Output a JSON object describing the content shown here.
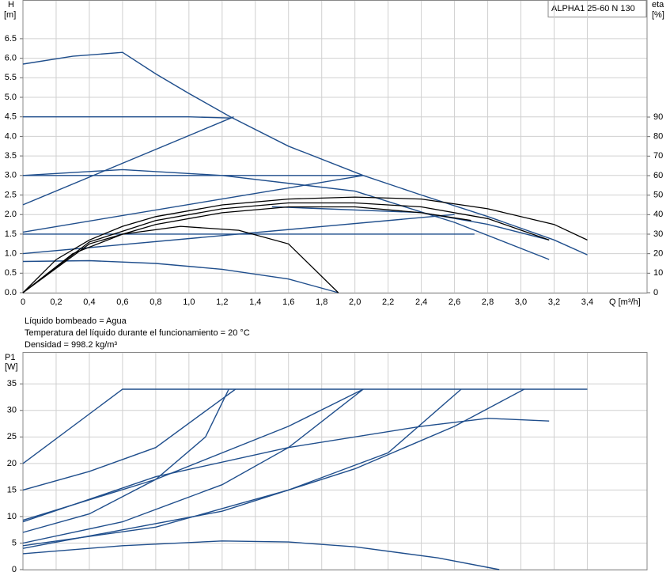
{
  "chart_data": [
    {
      "type": "line",
      "label": "ALPHA1 25-60 N 130",
      "ylabel": "H",
      "yunit": "[m]",
      "y2label": "eta",
      "y2unit": "[%]",
      "xlabel": "Q [m³/h]",
      "xlim": [
        0,
        3.76
      ],
      "ylim": [
        0,
        7.49
      ],
      "y2lim": [
        0,
        150
      ],
      "grid": true,
      "xticks": [
        0,
        {
          "value": 0.2,
          "label": "0,2"
        },
        {
          "value": 0.4,
          "label": "0,4"
        },
        {
          "value": 0.6,
          "label": "0,6"
        },
        {
          "value": 0.8,
          "label": "0,8"
        },
        {
          "value": 1,
          "label": "1,0"
        },
        {
          "value": 1.2,
          "label": "1,2"
        },
        {
          "value": 1.4,
          "label": "1,4"
        },
        {
          "value": 1.6,
          "label": "1,6"
        },
        {
          "value": 1.8,
          "label": "1,8"
        },
        {
          "value": 2,
          "label": "2,0"
        },
        {
          "value": 2.2,
          "label": "2,2"
        },
        {
          "value": 2.4,
          "label": "2,4"
        },
        {
          "value": 2.6,
          "label": "2,6"
        },
        {
          "value": 2.8,
          "label": "2,8"
        },
        {
          "value": 3,
          "label": "3,0"
        },
        {
          "value": 3.2,
          "label": "3,2"
        },
        {
          "value": 3.4,
          "label": "3,4"
        }
      ],
      "yticks": [
        {
          "value": 0,
          "label": "0.0"
        },
        0.5,
        {
          "value": 1,
          "label": "1.0"
        },
        1.5,
        {
          "value": 2,
          "label": "2.0"
        },
        2.5,
        {
          "value": 3,
          "label": "3.0"
        },
        3.5,
        {
          "value": 4,
          "label": "4.0"
        },
        4.5,
        {
          "value": 5,
          "label": "5.0"
        },
        5.5,
        {
          "value": 6,
          "label": "6.0"
        },
        6.5
      ],
      "y2ticks": [
        0,
        10,
        20,
        30,
        40,
        50,
        60,
        70,
        80,
        90
      ],
      "series": [
        {
          "color": "#1f4e8c",
          "x": [
            0,
            0.3,
            0.6,
            0.8,
            1.0,
            1.25,
            1.6,
            2.05,
            2.4,
            2.8,
            3.2,
            3.4
          ],
          "values": [
            5.85,
            6.05,
            6.15,
            5.6,
            5.1,
            4.5,
            3.75,
            3.0,
            2.5,
            1.95,
            1.35,
            0.97
          ]
        },
        {
          "color": "#1f4e8c",
          "x": [
            0,
            1.0,
            1.25
          ],
          "values": [
            4.5,
            4.5,
            4.47
          ]
        },
        {
          "color": "#1f4e8c",
          "x": [
            0,
            1.27
          ],
          "values": [
            2.25,
            4.5
          ]
        },
        {
          "color": "#1f4e8c",
          "x": [
            0,
            2.05
          ],
          "values": [
            3.0,
            3.0
          ]
        },
        {
          "color": "#1f4e8c",
          "x": [
            0,
            2.05
          ],
          "values": [
            1.55,
            3.0
          ]
        },
        {
          "color": "#1f4e8c",
          "x": [
            0,
            2.72
          ],
          "values": [
            1.5,
            1.5
          ]
        },
        {
          "color": "#1f4e8c",
          "x": [
            0,
            2.6
          ],
          "values": [
            1.0,
            2.0
          ]
        },
        {
          "color": "#1f4e8c",
          "x": [
            0,
            0.6,
            1.2,
            2.0,
            2.6,
            3.17
          ],
          "values": [
            3.0,
            3.15,
            3.0,
            2.6,
            1.8,
            0.85
          ]
        },
        {
          "color": "#1f4e8c",
          "x": [
            1.5,
            2.4,
            2.8,
            3.17
          ],
          "values": [
            2.2,
            2.05,
            1.75,
            1.35
          ]
        },
        {
          "color": "#1f4e8c",
          "x": [
            0,
            0.4,
            0.8,
            1.2,
            1.6,
            1.9
          ],
          "values": [
            0.8,
            0.82,
            0.75,
            0.6,
            0.35,
            0
          ]
        },
        {
          "color": "#000000",
          "axis": "y2",
          "x": [
            0,
            0.2,
            0.4,
            0.6,
            0.8,
            1.2,
            1.6,
            2.0,
            2.4,
            2.8,
            3.2,
            3.4
          ],
          "values": [
            0,
            17,
            27,
            34,
            39,
            45,
            48,
            49,
            48,
            43,
            35,
            27
          ]
        },
        {
          "color": "#000000",
          "axis": "y2",
          "x": [
            0,
            0.4,
            0.8,
            1.2,
            1.6,
            2.0,
            2.4,
            2.8,
            3.17
          ],
          "values": [
            0,
            26,
            37,
            43,
            46,
            46,
            44,
            38,
            27
          ]
        },
        {
          "color": "#000000",
          "axis": "y2",
          "x": [
            0,
            0.4,
            0.8,
            1.2,
            1.6,
            2.0,
            2.4,
            2.7
          ],
          "values": [
            0,
            25,
            35,
            41,
            44,
            44,
            41,
            37
          ]
        },
        {
          "color": "#000000",
          "axis": "y2",
          "x": [
            0,
            0.3,
            0.6,
            0.95,
            1.3,
            1.6,
            1.9
          ],
          "values": [
            0,
            20,
            30,
            34,
            32,
            25,
            0
          ]
        }
      ]
    },
    {
      "type": "line",
      "ylabel": "P1",
      "yunit": "[W]",
      "xlim": [
        0,
        3.76
      ],
      "ylim": [
        0,
        41
      ],
      "grid": true,
      "yticks": [
        0,
        5,
        10,
        15,
        20,
        25,
        30,
        35
      ],
      "series": [
        {
          "color": "#1f4e8c",
          "x": [
            0,
            0.6,
            3.4
          ],
          "values": [
            20,
            34,
            34
          ]
        },
        {
          "color": "#1f4e8c",
          "x": [
            0,
            0.4,
            0.8,
            1.28
          ],
          "values": [
            15,
            18.5,
            23,
            34
          ]
        },
        {
          "color": "#1f4e8c",
          "x": [
            0,
            0.4,
            0.8,
            1.1,
            1.24
          ],
          "values": [
            7,
            10.5,
            17,
            25,
            34
          ]
        },
        {
          "color": "#1f4e8c",
          "x": [
            0,
            0.8,
            1.6,
            2.05
          ],
          "values": [
            9.3,
            17,
            27,
            34
          ]
        },
        {
          "color": "#1f4e8c",
          "x": [
            0,
            0.6,
            1.2,
            1.6,
            2.05
          ],
          "values": [
            5,
            9,
            16,
            23,
            34
          ]
        },
        {
          "color": "#1f4e8c",
          "x": [
            0,
            0.8,
            1.6,
            2.4,
            2.8,
            3.17
          ],
          "values": [
            9,
            17.5,
            23,
            27,
            28.5,
            28
          ]
        },
        {
          "color": "#1f4e8c",
          "x": [
            0,
            0.8,
            1.6,
            2.2,
            2.64
          ],
          "values": [
            4.5,
            8,
            15,
            22,
            34
          ]
        },
        {
          "color": "#1f4e8c",
          "x": [
            0,
            1.2,
            2.0,
            2.6,
            3.02
          ],
          "values": [
            4,
            11,
            19,
            27,
            34
          ]
        },
        {
          "color": "#1f4e8c",
          "x": [
            0,
            0.6,
            1.2,
            1.6,
            2.0,
            2.5,
            2.87
          ],
          "values": [
            3,
            4.5,
            5.4,
            5.2,
            4.3,
            2.2,
            0
          ]
        }
      ]
    }
  ],
  "notes": [
    "Líquido bombeado = Agua",
    "Temperatura del líquido durante el funcionamiento = 20 °C",
    "Densidad = 998.2 kg/m³"
  ]
}
